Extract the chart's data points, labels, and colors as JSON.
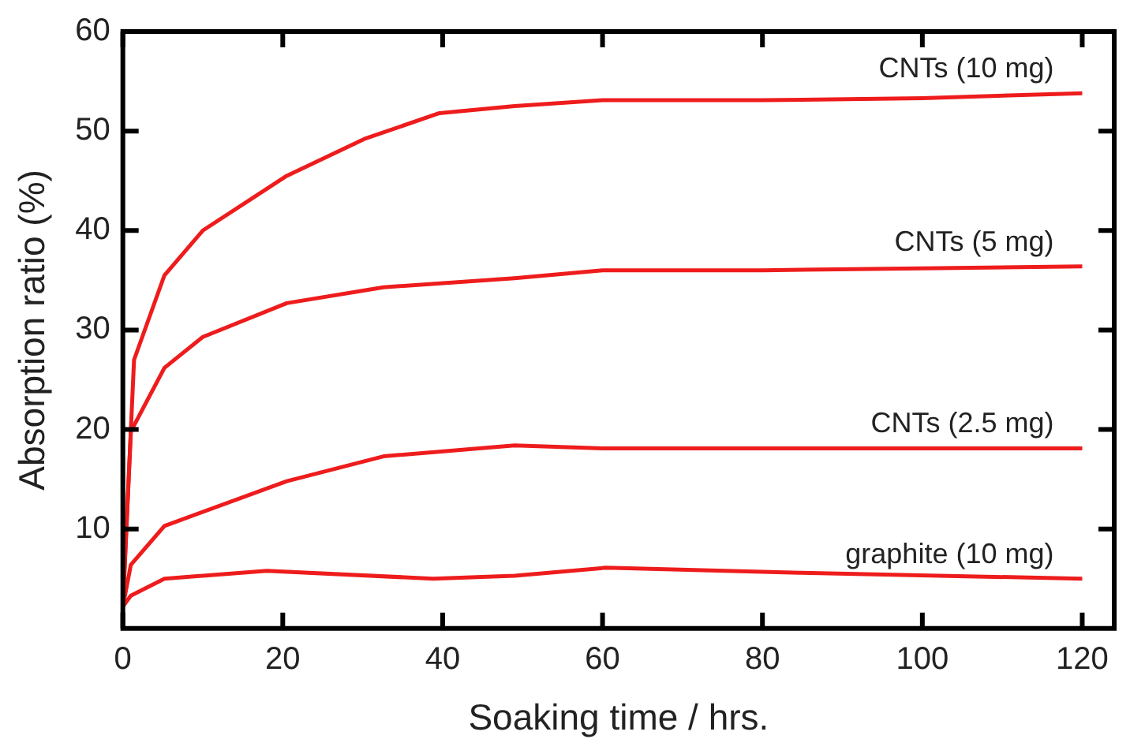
{
  "chart_data": {
    "type": "line",
    "xlabel": "Soaking time / hrs.",
    "ylabel": "Absorption ratio (%)",
    "xlim": [
      0,
      124
    ],
    "ylim": [
      0,
      60
    ],
    "xticks": [
      0,
      20,
      40,
      60,
      80,
      100,
      120
    ],
    "yticks": [
      10,
      20,
      30,
      40,
      50,
      60
    ],
    "grid": false,
    "legend": false,
    "marker": "none",
    "line_style": "solid",
    "series": [
      {
        "name": "CNTs (10 mg)",
        "color": "#ee1c1c",
        "x": [
          0,
          1.4,
          5.2,
          10,
          20.5,
          30.2,
          39.6,
          49,
          60,
          80,
          100,
          120
        ],
        "values": [
          2.2,
          27,
          35.5,
          40,
          45.5,
          49.2,
          51.8,
          52.5,
          53.1,
          53.1,
          53.3,
          53.8
        ]
      },
      {
        "name": "CNTs (5 mg)",
        "color": "#ee1c1c",
        "x": [
          0,
          1,
          5.2,
          10,
          20.5,
          32.6,
          49,
          60,
          80,
          100,
          120
        ],
        "values": [
          2.2,
          19.8,
          26.2,
          29.3,
          32.7,
          34.3,
          35.2,
          36,
          36,
          36.2,
          36.4
        ]
      },
      {
        "name": "CNTs (2.5 mg)",
        "color": "#ee1c1c",
        "x": [
          0,
          1,
          5.2,
          20.5,
          32.6,
          49,
          60,
          80,
          100,
          120
        ],
        "values": [
          2.2,
          6.4,
          10.3,
          14.8,
          17.3,
          18.4,
          18.1,
          18.1,
          18.1,
          18.1
        ]
      },
      {
        "name": "graphite (10 mg)",
        "color": "#ee1c1c",
        "x": [
          0,
          1,
          5.2,
          18,
          38.8,
          49,
          60.4,
          84.7,
          120
        ],
        "values": [
          2.2,
          3.3,
          5,
          5.8,
          5,
          5.3,
          6.1,
          5.6,
          5
        ]
      }
    ]
  }
}
